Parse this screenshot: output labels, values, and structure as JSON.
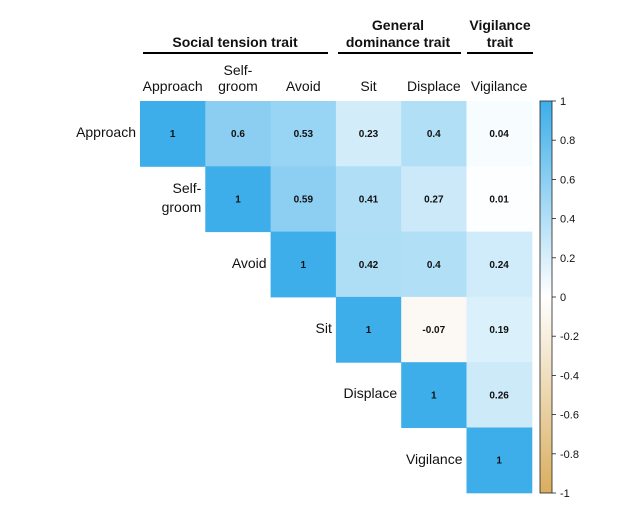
{
  "groups": [
    {
      "title": "Social tension trait"
    },
    {
      "title": "General\ndominance trait"
    },
    {
      "title": "Vigilance\ntrait"
    }
  ],
  "chart_data": {
    "type": "heatmap",
    "columns": [
      "Approach",
      "Self-\ngroom",
      "Avoid",
      "Sit",
      "Displace",
      "Vigilance"
    ],
    "rows": [
      "Approach",
      "Self-\ngroom",
      "Avoid",
      "Sit",
      "Displace",
      "Vigilance"
    ],
    "matrix": [
      [
        1,
        0.6,
        0.53,
        0.23,
        0.4,
        0.04
      ],
      [
        null,
        1,
        0.59,
        0.41,
        0.27,
        0.01
      ],
      [
        null,
        null,
        1,
        0.42,
        0.4,
        0.24
      ],
      [
        null,
        null,
        null,
        1,
        -0.07,
        0.19
      ],
      [
        null,
        null,
        null,
        null,
        1,
        0.26
      ],
      [
        null,
        null,
        null,
        null,
        null,
        1
      ]
    ],
    "colorbar": {
      "range": [
        -1,
        1
      ],
      "ticks": [
        "1",
        "0.8",
        "0.6",
        "0.4",
        "0.2",
        "0",
        "-0.2",
        "-0.4",
        "-0.6",
        "-0.8",
        "-1"
      ],
      "positive_color": "#3daee9",
      "zero_color": "#ffffff",
      "negative_color": "#d9ae5e"
    }
  }
}
